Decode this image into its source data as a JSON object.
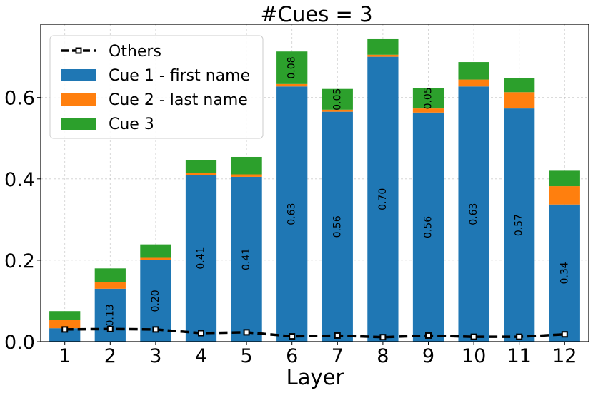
{
  "chart_data": {
    "type": "bar",
    "stacked": true,
    "title": "#Cues = 3",
    "xlabel": "Layer",
    "ylabel": "",
    "ylim": [
      0,
      0.78
    ],
    "yticks": [
      0.0,
      0.2,
      0.4,
      0.6
    ],
    "ytick_labels": [
      "0.0",
      "0.2",
      "0.4",
      "0.6"
    ],
    "grid": true,
    "legend_position": "top-left",
    "categories": [
      "1",
      "2",
      "3",
      "4",
      "5",
      "6",
      "7",
      "8",
      "9",
      "10",
      "11",
      "12"
    ],
    "series": [
      {
        "name": "Cue 1 - first name",
        "color": "#1f77b4",
        "values": [
          0.033,
          0.13,
          0.2,
          0.41,
          0.405,
          0.627,
          0.565,
          0.7,
          0.563,
          0.627,
          0.573,
          0.337
        ],
        "labels": [
          "",
          "0.13",
          "0.20",
          "0.41",
          "0.41",
          "0.63",
          "0.56",
          "0.70",
          "0.56",
          "0.63",
          "0.57",
          "0.34"
        ]
      },
      {
        "name": "Cue 2 - last name",
        "color": "#ff7f0e",
        "values": [
          0.02,
          0.016,
          0.006,
          0.004,
          0.006,
          0.006,
          0.005,
          0.005,
          0.01,
          0.017,
          0.04,
          0.045
        ],
        "labels": [
          "",
          "",
          "",
          "",
          "",
          "",
          "",
          "",
          "",
          "",
          "",
          ""
        ]
      },
      {
        "name": "Cue 3",
        "color": "#2ca02c",
        "values": [
          0.022,
          0.034,
          0.033,
          0.032,
          0.043,
          0.08,
          0.051,
          0.04,
          0.05,
          0.043,
          0.035,
          0.038
        ],
        "labels": [
          "",
          "",
          "",
          "",
          "",
          "0.08",
          "0.05",
          "",
          "0.05",
          "",
          "",
          ""
        ]
      }
    ],
    "line_series": {
      "name": "Others",
      "color": "#000000",
      "style": "dashed",
      "marker": "square",
      "values": [
        0.03,
        0.031,
        0.03,
        0.021,
        0.023,
        0.013,
        0.015,
        0.011,
        0.015,
        0.012,
        0.012,
        0.018
      ]
    }
  }
}
